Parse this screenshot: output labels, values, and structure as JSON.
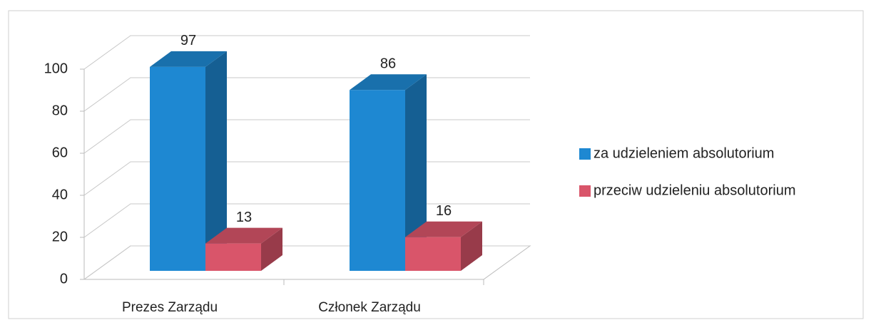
{
  "chart_data": {
    "type": "bar3d",
    "categories": [
      "Prezes Zarządu",
      "Członek Zarządu"
    ],
    "series": [
      {
        "name": "za udzieleniem absolutorium",
        "color": "#1e88d2",
        "values": [
          97,
          86
        ]
      },
      {
        "name": "przeciw udzieleniu absolutorium",
        "color": "#d9556a",
        "values": [
          13,
          16
        ]
      }
    ],
    "ylim": [
      0,
      100
    ],
    "yticks": [
      0,
      20,
      40,
      60,
      80,
      100
    ],
    "grid": true,
    "legend": "right"
  }
}
